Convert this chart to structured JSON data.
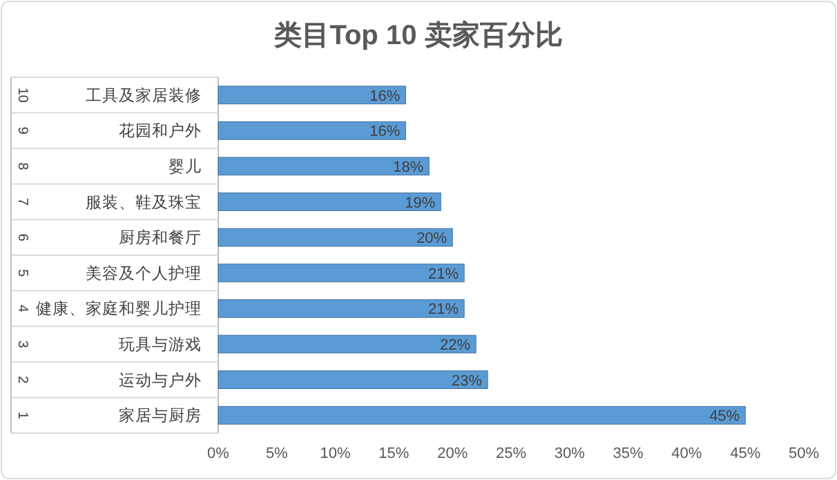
{
  "chart_data": {
    "type": "bar",
    "orientation": "horizontal",
    "title": "类目Top 10 卖家百分比",
    "categories": [
      "工具及家居装修",
      "花园和户外",
      "婴儿",
      "服装、鞋及珠宝",
      "厨房和餐厅",
      "美容及个人护理",
      "健康、家庭和婴儿护理",
      "玩具与游戏",
      "运动与户外",
      "家居与厨房"
    ],
    "values": [
      16,
      16,
      18,
      19,
      20,
      21,
      21,
      22,
      23,
      45
    ],
    "value_labels": [
      "16%",
      "16%",
      "18%",
      "19%",
      "20%",
      "21%",
      "21%",
      "22%",
      "23%",
      "45%"
    ],
    "color": "#5b9bd5",
    "xlim": [
      0,
      50
    ],
    "xticks": [
      {
        "value": 0,
        "label": "0%"
      },
      {
        "value": 5,
        "label": "5%"
      },
      {
        "value": 10,
        "label": "10%"
      },
      {
        "value": 15,
        "label": "15%"
      },
      {
        "value": 20,
        "label": "20%"
      },
      {
        "value": 25,
        "label": "25%"
      },
      {
        "value": 30,
        "label": "30%"
      },
      {
        "value": 35,
        "label": "35%"
      },
      {
        "value": 40,
        "label": "40%"
      },
      {
        "value": 45,
        "label": "45%"
      },
      {
        "value": 50,
        "label": "50%"
      }
    ],
    "annotations": [
      "10",
      "9",
      "8",
      "7",
      "6",
      "5",
      "4",
      "3",
      "2",
      "1"
    ]
  }
}
